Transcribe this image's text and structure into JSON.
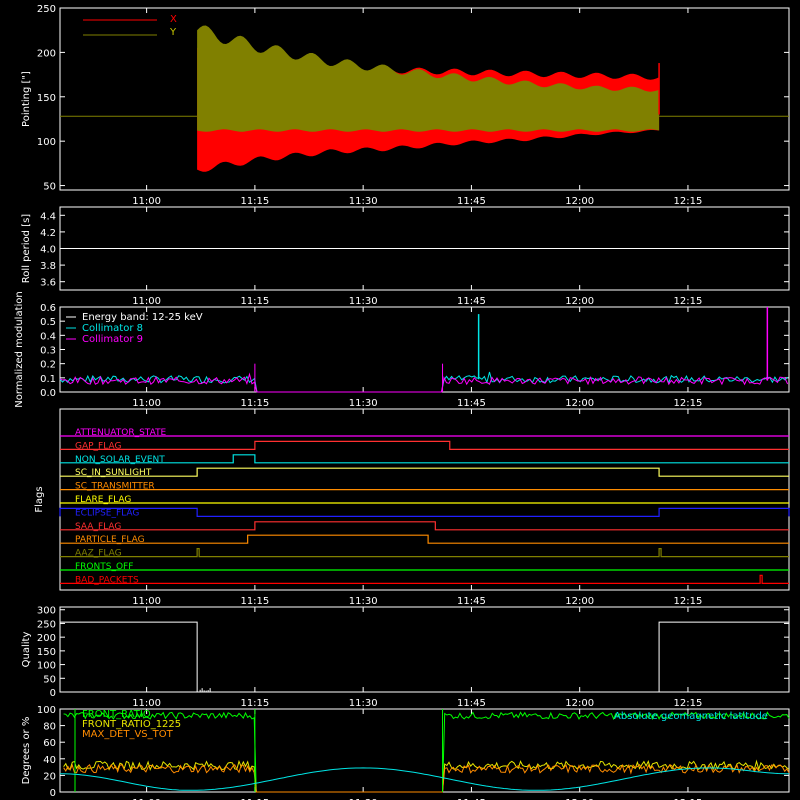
{
  "colors": {
    "background": "#000000",
    "axis": "#ffffff",
    "x_series": "#ff0000",
    "y_series": "#808000",
    "cyan": "#00e5e5",
    "magenta": "#ff00ff",
    "green": "#00ff00",
    "orange": "#ff8c00",
    "yellow": "#e6e600"
  },
  "time_ticks": [
    "11:00",
    "11:15",
    "11:30",
    "11:45",
    "12:00",
    "12:15"
  ],
  "chart_data": [
    {
      "type": "area",
      "panel": "pointing",
      "ylabel": "Pointing [\"]",
      "ylim": [
        45,
        250
      ],
      "yticks": [
        "50",
        "100",
        "150",
        "200",
        "250"
      ],
      "x_range": [
        "10:48",
        "12:29"
      ],
      "legend": {
        "placement": "top-left",
        "entries": [
          "X",
          "Y"
        ]
      },
      "series": [
        {
          "name": "X",
          "baseline": 128,
          "start": "11:07",
          "end": "12:11",
          "envelope_low": [
            68,
            80,
            88,
            92,
            98,
            102,
            108,
            112
          ],
          "envelope_high": [
            205,
            190,
            182,
            180,
            178,
            176,
            174,
            172
          ]
        },
        {
          "name": "Y",
          "baseline": 128,
          "start": "11:07",
          "end": "12:11",
          "envelope_low": [
            112,
            112,
            112,
            112,
            112,
            112,
            112,
            112
          ],
          "envelope_high": [
            225,
            205,
            190,
            180,
            172,
            165,
            160,
            158
          ]
        }
      ]
    },
    {
      "type": "line",
      "panel": "roll_period",
      "ylabel": "Roll period [s]",
      "ylim": [
        3.5,
        4.5
      ],
      "yticks": [
        "3.6",
        "3.8",
        "4.0",
        "4.2",
        "4.4"
      ],
      "series": [
        {
          "value": 4.0
        }
      ]
    },
    {
      "type": "line",
      "panel": "modulation",
      "ylabel": "Normalized modulation",
      "ylim": [
        0,
        0.6
      ],
      "yticks": [
        "0.0",
        "0.1",
        "0.2",
        "0.3",
        "0.4",
        "0.5",
        "0.6"
      ],
      "legend": {
        "placement": "top-left",
        "entries": [
          "Energy band: 12-25 keV",
          "Collimator 8",
          "Collimator 9"
        ]
      },
      "series": [
        {
          "name": "Collimator 8",
          "level": 0.09,
          "gaps": [
            [
              "11:15",
              "11:41"
            ]
          ],
          "spikes": [
            [
              "11:46",
              0.55
            ]
          ]
        },
        {
          "name": "Collimator 9",
          "level": 0.08,
          "gaps": [
            [
              "11:15",
              "11:41"
            ]
          ],
          "spikes": [
            [
              "12:26",
              0.6
            ]
          ]
        }
      ]
    },
    {
      "type": "line",
      "panel": "flags",
      "ylabel": "Flags",
      "flags": [
        {
          "name": "ATTENUATOR_STATE",
          "color": "#ff00ff",
          "steps": []
        },
        {
          "name": "GAP_FLAG",
          "color": "#ff3030",
          "steps": [
            [
              "11:15",
              "11:42"
            ]
          ]
        },
        {
          "name": "NON_SOLAR_EVENT",
          "color": "#00e5e5",
          "steps": [
            [
              "11:12",
              "11:15"
            ]
          ]
        },
        {
          "name": "SC_IN_SUNLIGHT",
          "color": "#ffff60",
          "steps": [
            [
              "11:07",
              "12:11"
            ]
          ]
        },
        {
          "name": "SC_TRANSMITTER",
          "color": "#ff8c00",
          "steps": []
        },
        {
          "name": "FLARE_FLAG",
          "color": "#ffff00",
          "steps": []
        },
        {
          "name": "ECLIPSE_FLAG",
          "color": "#2020ff",
          "steps": [
            [
              "10:48",
              "11:07"
            ],
            [
              "12:11",
              "12:29"
            ]
          ]
        },
        {
          "name": "SAA_FLAG",
          "color": "#ff3030",
          "steps": [
            [
              "11:15",
              "11:40"
            ]
          ]
        },
        {
          "name": "PARTICLE_FLAG",
          "color": "#ff8c00",
          "steps": [
            [
              "11:14",
              "11:39"
            ]
          ]
        },
        {
          "name": "AAZ_FLAG",
          "color": "#808000",
          "steps": [
            [
              "11:07",
              "11:07"
            ],
            [
              "12:11",
              "12:11"
            ]
          ]
        },
        {
          "name": "FRONTS_OFF",
          "color": "#00ff00",
          "steps": []
        },
        {
          "name": "BAD_PACKETS",
          "color": "#ff0000",
          "steps": [
            [
              "12:25",
              "12:25"
            ]
          ]
        }
      ]
    },
    {
      "type": "line",
      "panel": "quality",
      "ylabel": "Quality",
      "ylim": [
        0,
        310
      ],
      "yticks": [
        "0",
        "50",
        "100",
        "150",
        "200",
        "250",
        "300"
      ],
      "series": [
        {
          "segments": [
            [
              "10:48",
              "11:07",
              255
            ],
            [
              "11:07",
              "12:11",
              0
            ],
            [
              "12:11",
              "12:29",
              255
            ]
          ]
        }
      ]
    },
    {
      "type": "line",
      "panel": "degrees",
      "ylabel": "Degrees or %",
      "ylim": [
        0,
        100
      ],
      "yticks": [
        "0",
        "20",
        "40",
        "60",
        "80",
        "100"
      ],
      "legend": {
        "placement": "top-left",
        "entries": [
          "FRONT_RATIO",
          "FRONT_RATIO_1225",
          "MAX_DET_VS_TOT"
        ]
      },
      "annotation": "Absolute geomagnetic latitude",
      "series": [
        {
          "name": "FRONT_RATIO",
          "level": 92,
          "gaps": [
            [
              "11:15",
              "11:41"
            ]
          ]
        },
        {
          "name": "FRONT_RATIO_1225",
          "level": 32,
          "gaps": [
            [
              "11:15",
              "11:41"
            ]
          ]
        },
        {
          "name": "MAX_DET_VS_TOT",
          "level": 28,
          "gaps": [
            [
              "11:15",
              "11:41"
            ]
          ]
        },
        {
          "name": "Absolute geomagnetic latitude",
          "extrema": [
            [
              "10:48",
              22
            ],
            [
              "11:06",
              2
            ],
            [
              "11:30",
              29
            ],
            [
              "11:54",
              2
            ],
            [
              "12:18",
              29
            ],
            [
              "12:29",
              22
            ]
          ]
        }
      ]
    }
  ]
}
